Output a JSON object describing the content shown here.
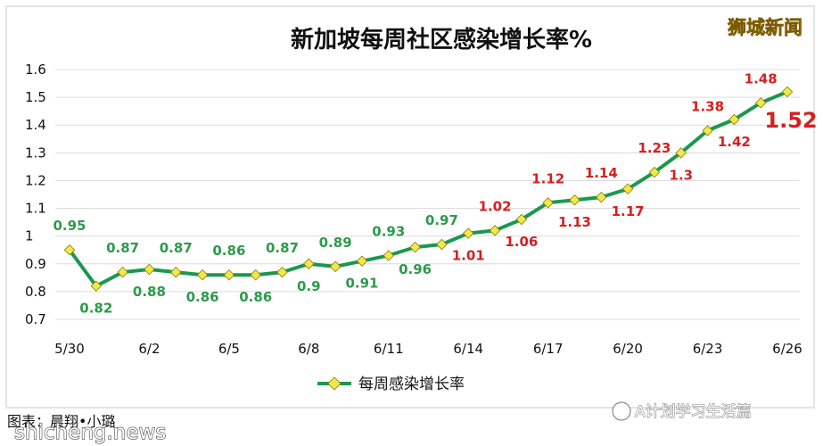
{
  "brand": "狮城新闻",
  "credit": "图表：晨翔•小璐",
  "watermark_site": "shicheng.news",
  "watermark_account": "A计划学习生活篇",
  "chart_data": {
    "type": "line",
    "title": "新加坡每周社区感染增长率%",
    "x": [
      "5/30",
      "5/31",
      "6/1",
      "6/2",
      "6/3",
      "6/4",
      "6/5",
      "6/6",
      "6/7",
      "6/8",
      "6/9",
      "6/10",
      "6/11",
      "6/12",
      "6/13",
      "6/14",
      "6/15",
      "6/16",
      "6/17",
      "6/18",
      "6/19",
      "6/20",
      "6/21",
      "6/22",
      "6/23",
      "6/24",
      "6/25",
      "6/26"
    ],
    "x_tick_labels": [
      "5/30",
      "6/2",
      "6/5",
      "6/8",
      "6/11",
      "6/14",
      "6/17",
      "6/20",
      "6/23",
      "6/26"
    ],
    "ylim": [
      0.7,
      1.6
    ],
    "y_ticks": [
      "0.7",
      "0.8",
      "0.9",
      "1",
      "1.1",
      "1.2",
      "1.3",
      "1.4",
      "1.5",
      "1.6"
    ],
    "grid": true,
    "legend_position": "bottom",
    "series": [
      {
        "name": "每周感染增长率",
        "color": "#1a9850",
        "marker_color": "#f2e84a",
        "values": [
          0.95,
          0.82,
          0.87,
          0.88,
          0.87,
          0.86,
          0.86,
          0.86,
          0.87,
          0.9,
          0.89,
          0.91,
          0.93,
          0.96,
          0.97,
          1.01,
          1.02,
          1.06,
          1.12,
          1.13,
          1.14,
          1.17,
          1.23,
          1.3,
          1.38,
          1.42,
          1.48,
          1.52
        ],
        "data_labels": [
          "0.95",
          "0.82",
          "0.87",
          "0.88",
          "0.87",
          "0.86",
          "0.86",
          "0.86",
          "0.87",
          "0.9",
          "0.89",
          "0.91",
          "0.93",
          "0.96",
          "0.97",
          "1.01",
          "1.02",
          "1.06",
          "1.12",
          "1.13",
          "1.14",
          "1.17",
          "1.23",
          "1.3",
          "1.38",
          "1.42",
          "1.48",
          "1.52"
        ],
        "label_colors": {
          "below_1": "#2e9a4a",
          "at_or_above_1": "#d42020"
        }
      }
    ]
  }
}
